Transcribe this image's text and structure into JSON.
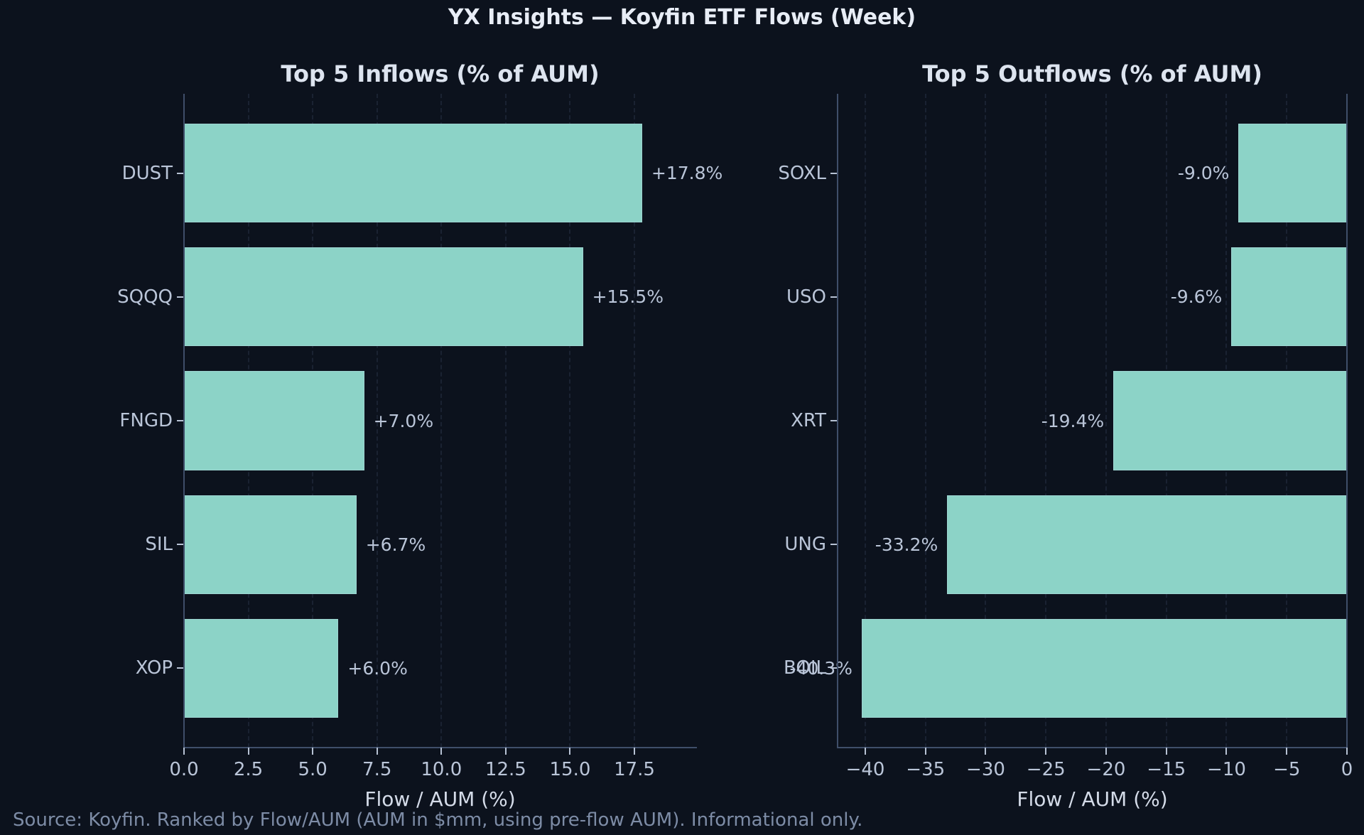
{
  "title": "YX Insights — Koyfin ETF Flows (Week)",
  "footer": "Source: Koyfin. Ranked by Flow/AUM (AUM in $mm, using pre-flow AUM). Informational only.",
  "colors": {
    "background": "#0c121d",
    "bar_fill": "#8cd3c7",
    "spine": "#3f4e69",
    "tick_text": "#bac5d8",
    "title_text": "#e8edf6",
    "subtitle_text": "#dde4ef",
    "footer_text": "#7d8ca6"
  },
  "chart_data": [
    {
      "type": "bar",
      "orientation": "horizontal",
      "title": "Top 5 Inflows (% of AUM)",
      "xlabel": "Flow / AUM (%)",
      "categories": [
        "DUST",
        "SQQQ",
        "FNGD",
        "SIL",
        "XOP"
      ],
      "values": [
        17.8,
        15.5,
        7.0,
        6.7,
        6.0
      ],
      "value_labels": [
        "+17.8%",
        "+15.5%",
        "+7.0%",
        "+6.7%",
        "+6.0%"
      ],
      "value_label_side": "right",
      "xlim": [
        0,
        19.9
      ],
      "xticks": [
        0,
        2.5,
        5,
        7.5,
        10,
        12.5,
        15,
        17.5
      ],
      "xtick_labels": [
        "0.0",
        "2.5",
        "5.0",
        "7.5",
        "10.0",
        "12.5",
        "15.0",
        "17.5"
      ],
      "grid": "vertical-dashed",
      "spines": [
        "left",
        "bottom"
      ]
    },
    {
      "type": "bar",
      "orientation": "horizontal",
      "title": "Top 5 Outflows (% of AUM)",
      "xlabel": "Flow / AUM (%)",
      "categories": [
        "SOXL",
        "USO",
        "XRT",
        "UNG",
        "BOIL"
      ],
      "values": [
        -9.0,
        -9.6,
        -19.4,
        -33.2,
        -40.3
      ],
      "value_labels": [
        "-9.0%",
        "-9.6%",
        "-19.4%",
        "-33.2%",
        "-40.3%"
      ],
      "value_label_side": "left",
      "xlim": [
        -42.3,
        0
      ],
      "xticks": [
        -40,
        -35,
        -30,
        -25,
        -20,
        -15,
        -10,
        -5,
        0
      ],
      "xtick_labels": [
        "−40",
        "−35",
        "−30",
        "−25",
        "−20",
        "−15",
        "−10",
        "−5",
        "0"
      ],
      "grid": "vertical-dashed",
      "spines": [
        "left",
        "bottom",
        "right"
      ]
    }
  ]
}
